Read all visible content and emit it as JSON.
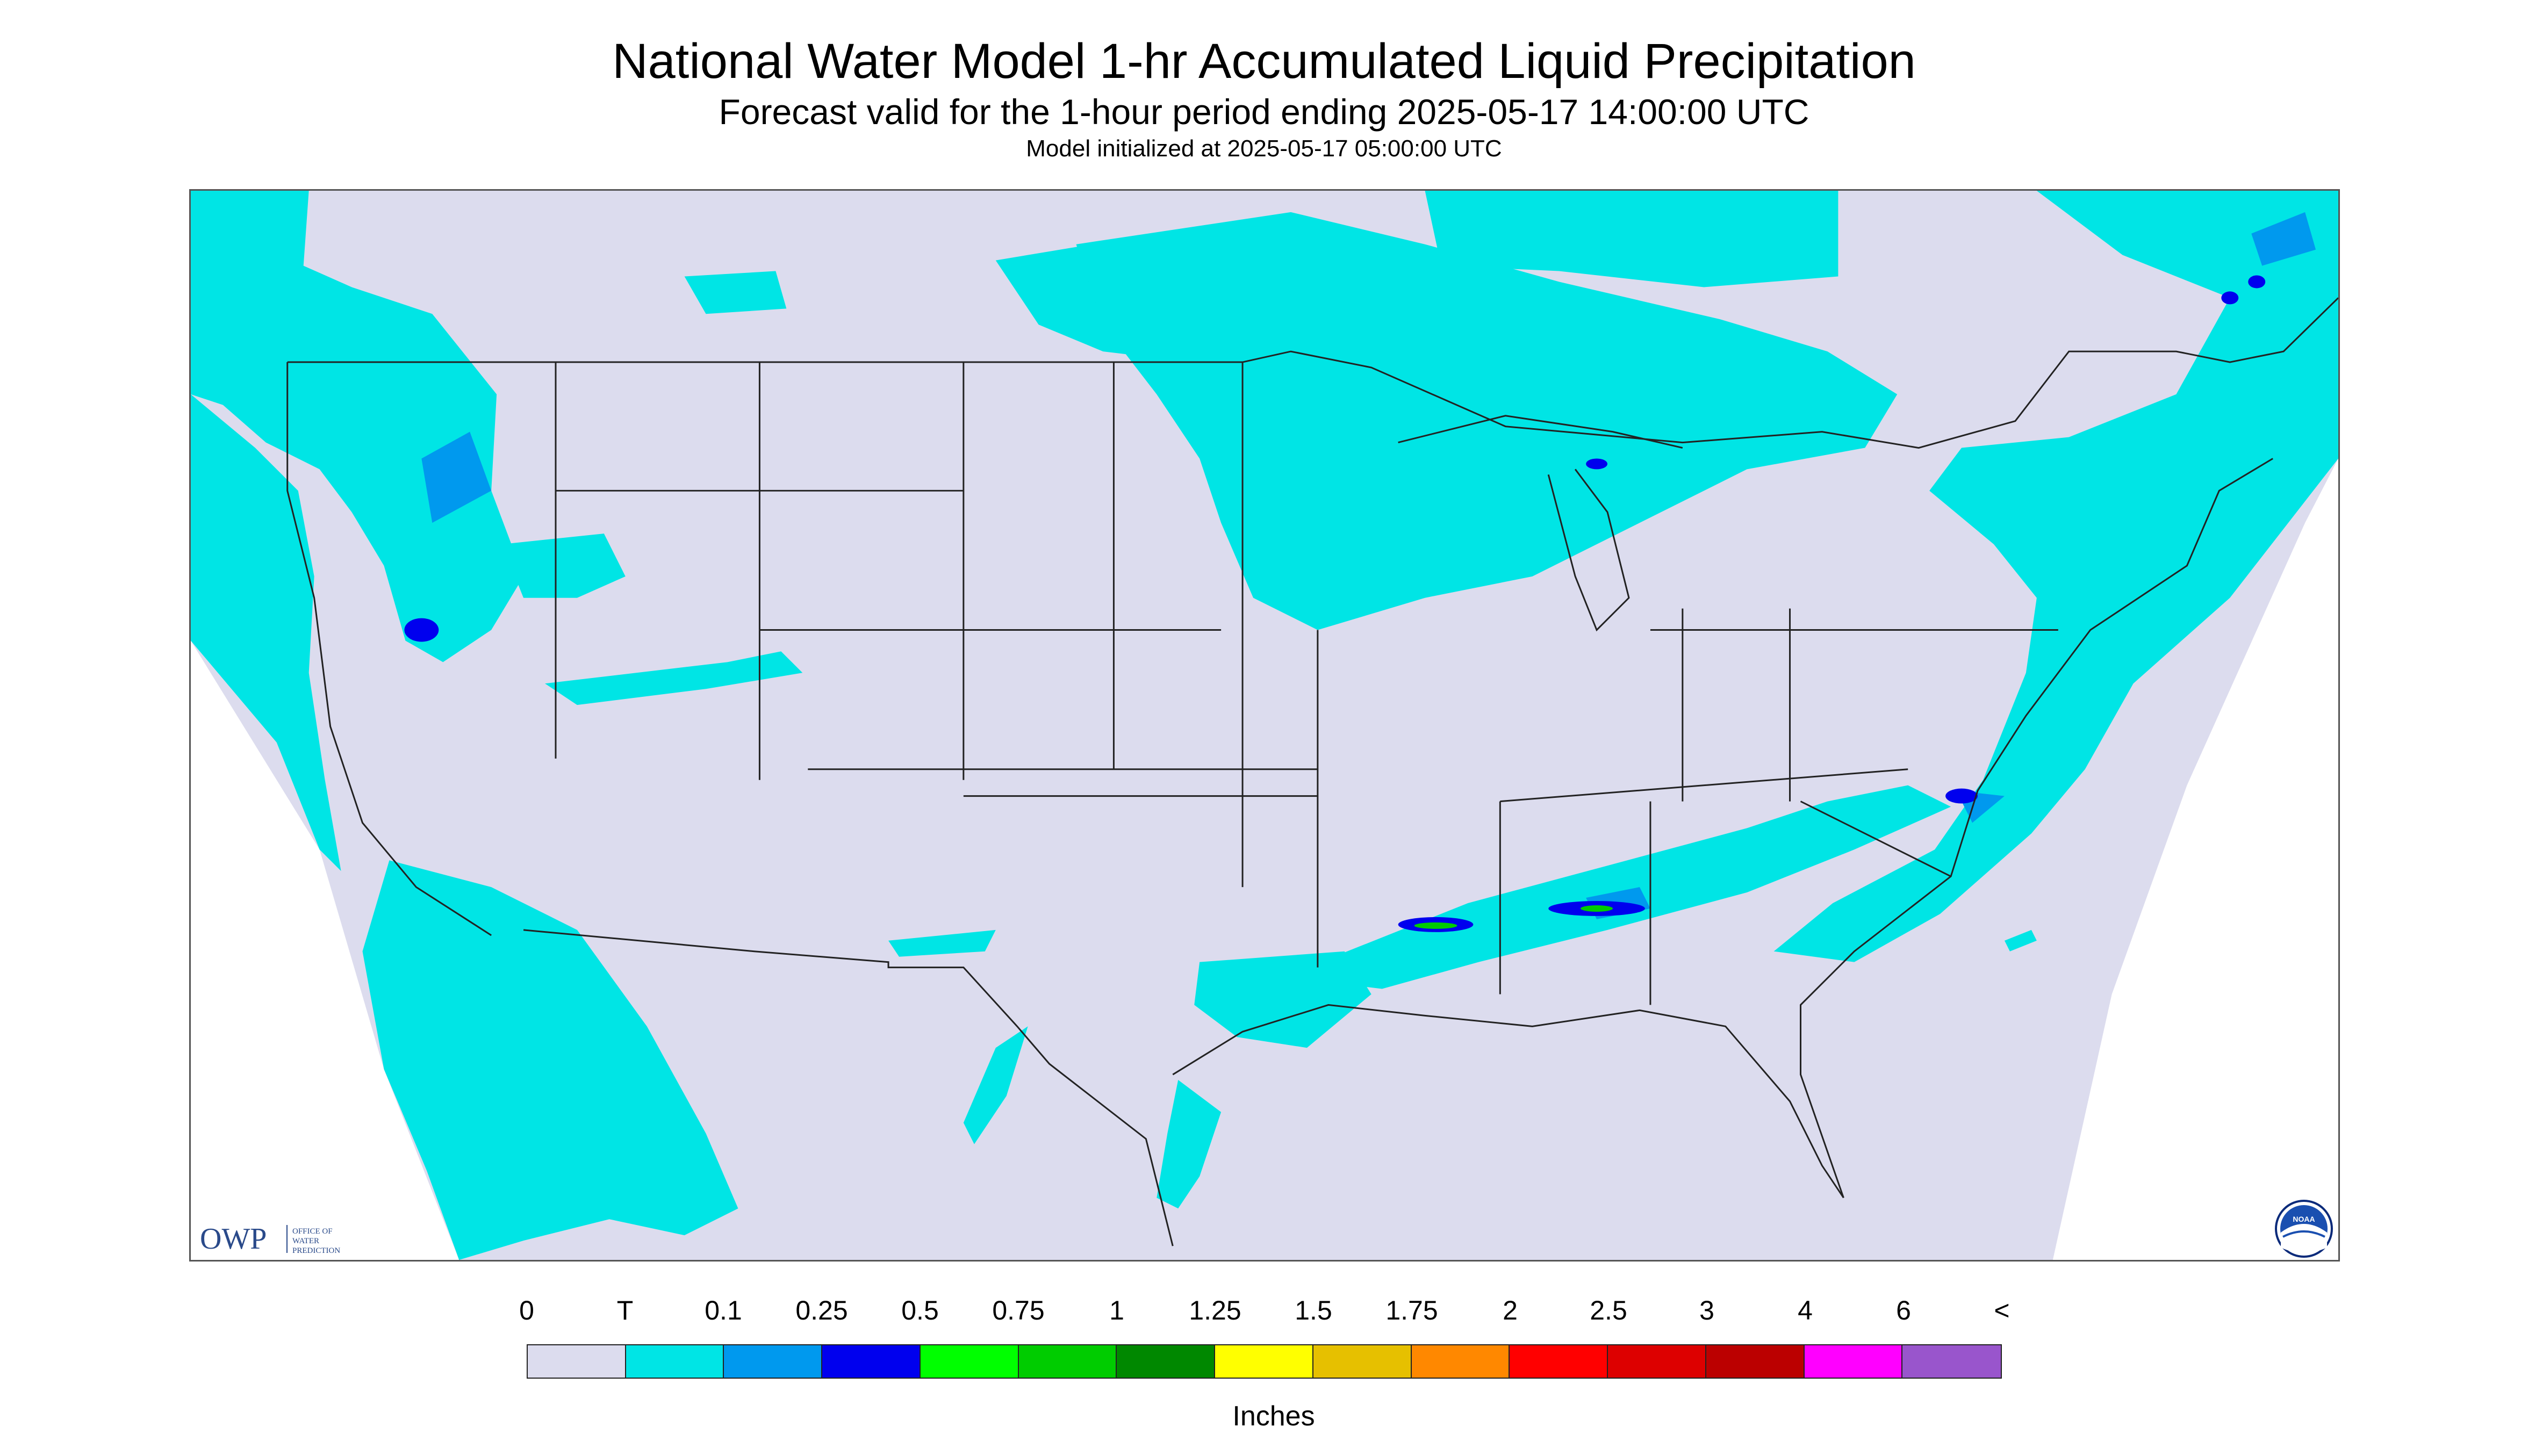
{
  "header": {
    "title": "National Water Model 1-hr Accumulated Liquid Precipitation",
    "subtitle": "Forecast valid for the 1-hour period ending 2025-05-17 14:00:00 UTC",
    "init_line": "Model initialized at 2025-05-17 05:00:00 UTC"
  },
  "map": {
    "background_color": "#dcdcee",
    "land_outline_color": "#222222",
    "region": "CONUS",
    "precip_areas": [
      {
        "region": "Pacific Northwest coast",
        "level": "T"
      },
      {
        "region": "Northern California coast",
        "level": "T"
      },
      {
        "region": "Southern California / Baja offshore",
        "level": "T"
      },
      {
        "region": "Upper Midwest / Great Lakes",
        "level": "T"
      },
      {
        "region": "Northeast / New England",
        "level": "T"
      },
      {
        "region": "Mid-Atlantic coast",
        "level": "0.25"
      },
      {
        "region": "Lower Mississippi / Alabama band",
        "level": "0.5"
      },
      {
        "region": "Texas Gulf coast",
        "level": "T"
      }
    ]
  },
  "logos": {
    "owp_text": "OWP",
    "owp_subtext_1": "OFFICE OF",
    "owp_subtext_2": "WATER",
    "owp_subtext_3": "PREDICTION",
    "noaa_text": "NOAA"
  },
  "legend": {
    "units": "Inches",
    "ticks": [
      "0",
      "T",
      "0.1",
      "0.25",
      "0.5",
      "0.75",
      "1",
      "1.25",
      "1.5",
      "1.75",
      "2",
      "2.5",
      "3",
      "4",
      "6",
      "<"
    ],
    "colors": [
      "#dcdcee",
      "#00e5e5",
      "#0099ee",
      "#0000ee",
      "#00ff00",
      "#00cc00",
      "#008800",
      "#ffff00",
      "#e6c000",
      "#ff8800",
      "#ff0000",
      "#dd0000",
      "#bb0000",
      "#ff00ff",
      "#9955cc"
    ]
  }
}
